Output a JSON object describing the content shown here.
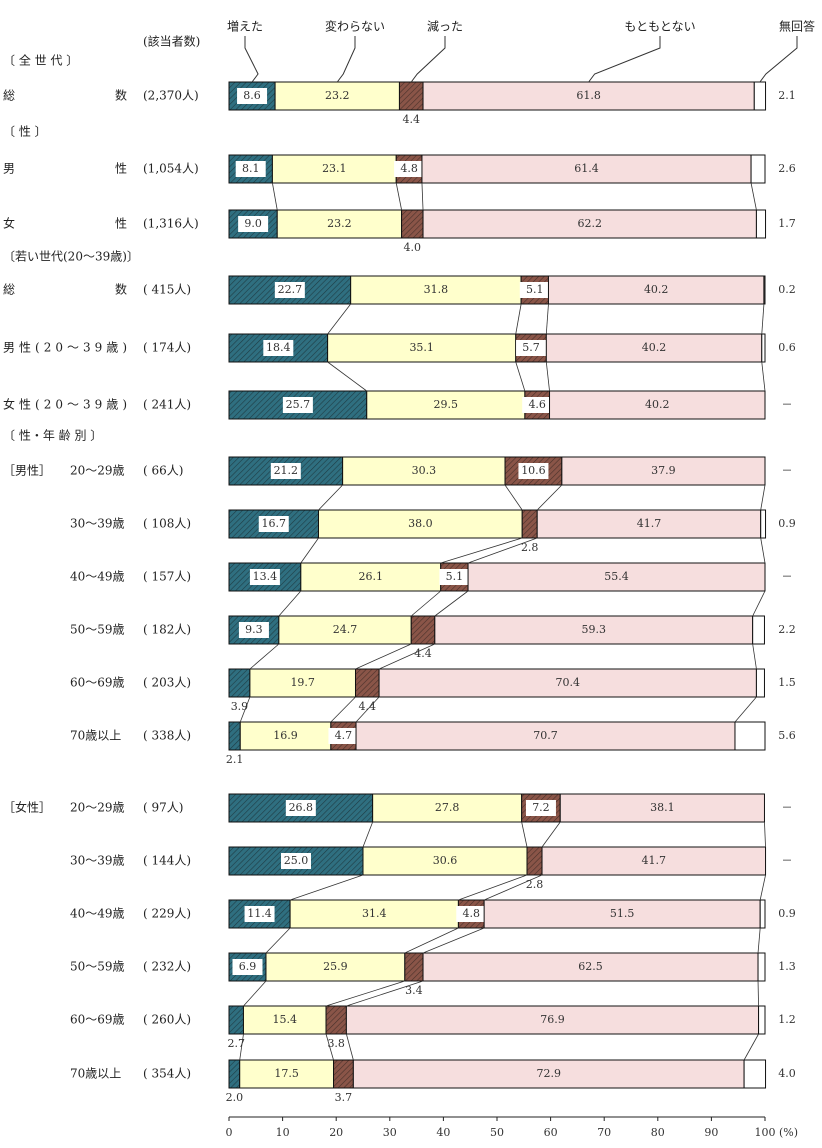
{
  "chart_data": {
    "type": "stacked_bar",
    "count_header": "(該当者数)",
    "x_unit": "(%)",
    "xlim": [
      0,
      100
    ],
    "xticks": [
      0,
      10,
      20,
      30,
      40,
      50,
      60,
      70,
      80,
      90,
      100
    ],
    "groups": [
      {
        "label": "〔 全 世 代 〕",
        "rows": [
          {
            "category": "総数",
            "count": "(2,370人)"
          }
        ]
      },
      {
        "label": "〔 性 〕",
        "rows": [
          {
            "category": "男性",
            "count": "(1,054人)"
          },
          {
            "category": "女性",
            "count": "(1,316人)"
          }
        ]
      },
      {
        "label": "〔若い世代(20～39歳)〕",
        "rows": [
          {
            "category": "総数",
            "count": "( 415人)"
          },
          {
            "category": "男性(20～39歳)",
            "count": "( 174人)"
          },
          {
            "category": "女性(20～39歳)",
            "count": "( 241人)"
          }
        ]
      },
      {
        "label": "〔 性・年 齢 別 〕",
        "rows": []
      },
      {
        "label": "［男性］",
        "rows": [
          {
            "category": "20～29歳",
            "count": "( 66人)"
          },
          {
            "category": "30～39歳",
            "count": "( 108人)"
          },
          {
            "category": "40～49歳",
            "count": "( 157人)"
          },
          {
            "category": "50～59歳",
            "count": "( 182人)"
          },
          {
            "category": "60～69歳",
            "count": "( 203人)"
          },
          {
            "category": "70歳以上",
            "count": "( 338人)"
          }
        ]
      },
      {
        "label": "［女性］",
        "rows": [
          {
            "category": "20～29歳",
            "count": "( 97人)"
          },
          {
            "category": "30～39歳",
            "count": "( 144人)"
          },
          {
            "category": "40～49歳",
            "count": "( 229人)"
          },
          {
            "category": "50～59歳",
            "count": "( 232人)"
          },
          {
            "category": "60～69歳",
            "count": "( 260人)"
          },
          {
            "category": "70歳以上",
            "count": "( 354人)"
          }
        ]
      }
    ],
    "series": [
      {
        "name": "増えた",
        "color": "#2f6f80",
        "hatch": true,
        "values": [
          8.6,
          8.1,
          9.0,
          22.7,
          18.4,
          25.7,
          21.2,
          16.7,
          13.4,
          9.3,
          3.9,
          2.1,
          26.8,
          25.0,
          11.4,
          6.9,
          2.7,
          2.0
        ],
        "value_labels": [
          "8.6",
          "8.1",
          "9.0",
          "22.7",
          "18.4",
          "25.7",
          "21.2",
          "16.7",
          "13.4",
          "9.3",
          "3.9",
          "2.1",
          "26.8",
          "25.0",
          "11.4",
          "6.9",
          "2.7",
          "2.0"
        ]
      },
      {
        "name": "変わらない",
        "color": "#ffffcc",
        "hatch": false,
        "values": [
          23.2,
          23.1,
          23.2,
          31.8,
          35.1,
          29.5,
          30.3,
          38.0,
          26.1,
          24.7,
          19.7,
          16.9,
          27.8,
          30.6,
          31.4,
          25.9,
          15.4,
          17.5
        ],
        "value_labels": [
          "23.2",
          "23.1",
          "23.2",
          "31.8",
          "35.1",
          "29.5",
          "30.3",
          "38.0",
          "26.1",
          "24.7",
          "19.7",
          "16.9",
          "27.8",
          "30.6",
          "31.4",
          "25.9",
          "15.4",
          "17.5"
        ]
      },
      {
        "name": "減った",
        "color": "#8a5548",
        "hatch": true,
        "values": [
          4.4,
          4.8,
          4.0,
          5.1,
          5.7,
          4.6,
          10.6,
          2.8,
          5.1,
          4.4,
          4.4,
          4.7,
          7.2,
          2.8,
          4.8,
          3.4,
          3.8,
          3.7
        ],
        "value_labels": [
          "4.4",
          "4.8",
          "4.0",
          "5.1",
          "5.7",
          "4.6",
          "10.6",
          "2.8",
          "5.1",
          "4.4",
          "4.4",
          "4.7",
          "7.2",
          "2.8",
          "4.8",
          "3.4",
          "3.8",
          "3.7"
        ]
      },
      {
        "name": "もともとない",
        "color": "#f6dede",
        "hatch": false,
        "values": [
          61.8,
          61.4,
          62.2,
          40.2,
          40.2,
          40.2,
          37.9,
          41.7,
          55.4,
          59.3,
          70.4,
          70.7,
          38.1,
          41.7,
          51.5,
          62.5,
          76.9,
          72.9
        ],
        "value_labels": [
          "61.8",
          "61.4",
          "62.2",
          "40.2",
          "40.2",
          "40.2",
          "37.9",
          "41.7",
          "55.4",
          "59.3",
          "70.4",
          "70.7",
          "38.1",
          "41.7",
          "51.5",
          "62.5",
          "76.9",
          "72.9"
        ]
      },
      {
        "name": "無回答",
        "color": "#ffffff",
        "hatch": false,
        "values": [
          2.1,
          2.6,
          1.7,
          0.2,
          0.6,
          null,
          null,
          0.9,
          null,
          2.2,
          1.5,
          5.6,
          null,
          null,
          0.9,
          1.3,
          1.2,
          4.0
        ],
        "value_labels": [
          "2.1",
          "2.6",
          "1.7",
          "0.2",
          "0.6",
          "－",
          "－",
          "0.9",
          "－",
          "2.2",
          "1.5",
          "5.6",
          "－",
          "－",
          "0.9",
          "1.3",
          "1.2",
          "4.0"
        ]
      }
    ]
  }
}
